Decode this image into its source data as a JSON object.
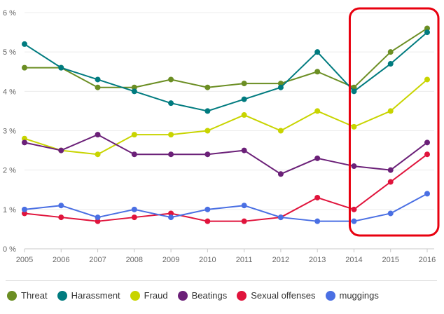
{
  "chart_data": {
    "type": "line",
    "categories": [
      "2005",
      "2006",
      "2007",
      "2008",
      "2009",
      "2010",
      "2011",
      "2012",
      "2013",
      "2014",
      "2015",
      "2016"
    ],
    "y_ticks": [
      "0 %",
      "1 %",
      "2 %",
      "3 %",
      "4 %",
      "5 %",
      "6 %"
    ],
    "ylim": [
      0,
      6
    ],
    "grid": true,
    "legend_position": "bottom",
    "series": [
      {
        "name": "Threat",
        "color": "#6b8e23",
        "values": [
          4.6,
          4.6,
          4.1,
          4.1,
          4.3,
          4.1,
          4.2,
          4.2,
          4.5,
          4.1,
          5.0,
          5.6
        ]
      },
      {
        "name": "Harassment",
        "color": "#007b7f",
        "values": [
          5.2,
          4.6,
          4.3,
          4.0,
          3.7,
          3.5,
          3.8,
          4.1,
          5.0,
          4.0,
          4.7,
          5.5
        ]
      },
      {
        "name": "Fraud",
        "color": "#c8d400",
        "values": [
          2.8,
          2.5,
          2.4,
          2.9,
          2.9,
          3.0,
          3.4,
          3.0,
          3.5,
          3.1,
          3.5,
          4.3
        ]
      },
      {
        "name": "Beatings",
        "color": "#6b2078",
        "values": [
          2.7,
          2.5,
          2.9,
          2.4,
          2.4,
          2.4,
          2.5,
          1.9,
          2.3,
          2.1,
          2.0,
          2.7
        ]
      },
      {
        "name": "Sexual offenses",
        "color": "#e0143c",
        "values": [
          0.9,
          0.8,
          0.7,
          0.8,
          0.9,
          0.7,
          0.7,
          0.8,
          1.3,
          1.0,
          1.7,
          2.4
        ]
      },
      {
        "name": "muggings",
        "color": "#4a6fe3",
        "values": [
          1.0,
          1.1,
          0.8,
          1.0,
          0.8,
          1.0,
          1.1,
          0.8,
          0.7,
          0.7,
          0.9,
          1.4
        ]
      }
    ],
    "highlight": {
      "from": "2014",
      "to": "2016",
      "color": "#e8000f"
    }
  }
}
